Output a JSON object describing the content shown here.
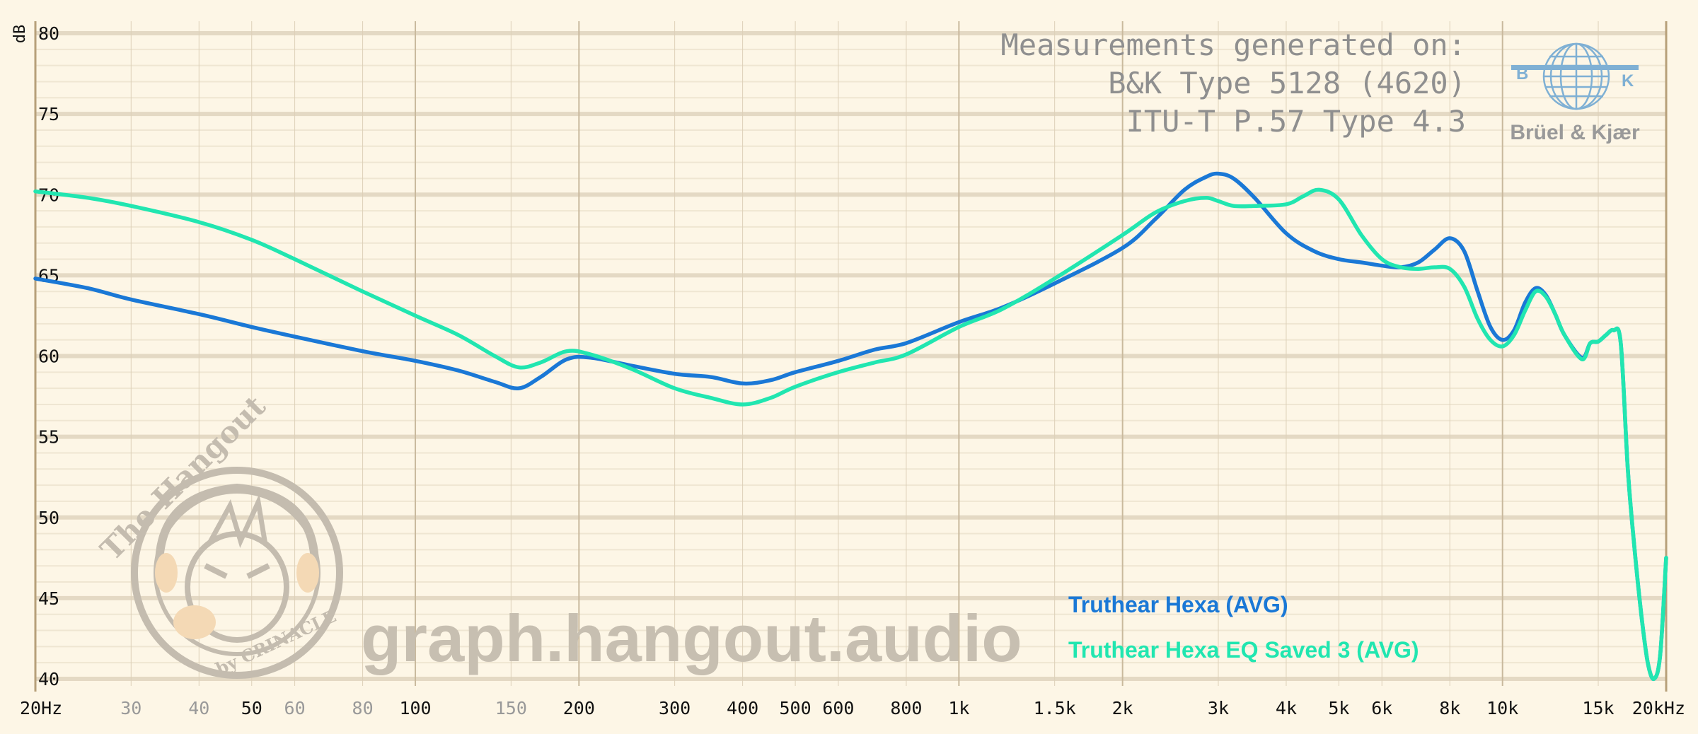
{
  "chart_data": {
    "type": "line",
    "ylabel": "dB",
    "ylim": [
      40,
      80
    ],
    "yticks": [
      40,
      45,
      50,
      55,
      60,
      65,
      70,
      75,
      80
    ],
    "xscale": "log",
    "xlim": [
      20,
      20000
    ],
    "xticks": [
      {
        "v": 20,
        "label": "20Hz",
        "major": true
      },
      {
        "v": 30,
        "label": "30",
        "major": false
      },
      {
        "v": 40,
        "label": "40",
        "major": false
      },
      {
        "v": 50,
        "label": "50",
        "major": true
      },
      {
        "v": 60,
        "label": "60",
        "major": false
      },
      {
        "v": 80,
        "label": "80",
        "major": false
      },
      {
        "v": 100,
        "label": "100",
        "major": true
      },
      {
        "v": 150,
        "label": "150",
        "major": false
      },
      {
        "v": 200,
        "label": "200",
        "major": true
      },
      {
        "v": 300,
        "label": "300",
        "major": true
      },
      {
        "v": 400,
        "label": "400",
        "major": true
      },
      {
        "v": 500,
        "label": "500",
        "major": true
      },
      {
        "v": 600,
        "label": "600",
        "major": true
      },
      {
        "v": 800,
        "label": "800",
        "major": true
      },
      {
        "v": 1000,
        "label": "1k",
        "major": true
      },
      {
        "v": 1500,
        "label": "1.5k",
        "major": true
      },
      {
        "v": 2000,
        "label": "2k",
        "major": true
      },
      {
        "v": 3000,
        "label": "3k",
        "major": true
      },
      {
        "v": 4000,
        "label": "4k",
        "major": true
      },
      {
        "v": 5000,
        "label": "5k",
        "major": true
      },
      {
        "v": 6000,
        "label": "6k",
        "major": true
      },
      {
        "v": 8000,
        "label": "8k",
        "major": true
      },
      {
        "v": 10000,
        "label": "10k",
        "major": true
      },
      {
        "v": 15000,
        "label": "15k",
        "major": true
      },
      {
        "v": 20000,
        "label": "20kHz",
        "major": true
      }
    ],
    "grid": true,
    "legend_position": "bottom-right",
    "series": [
      {
        "name": "Truthear Hexa (AVG)",
        "color": "#1a78d6",
        "x": [
          20,
          25,
          30,
          40,
          50,
          60,
          80,
          100,
          120,
          140,
          155,
          170,
          190,
          210,
          250,
          300,
          350,
          400,
          450,
          500,
          600,
          700,
          800,
          1000,
          1200,
          1500,
          2000,
          2300,
          2600,
          2850,
          3000,
          3200,
          3500,
          4000,
          4500,
          5000,
          5500,
          6000,
          6500,
          7000,
          7500,
          8000,
          8500,
          9000,
          9500,
          10000,
          10500,
          11000,
          11500,
          12000,
          12500,
          13000,
          14000,
          14500,
          15000,
          15500,
          16000,
          16500,
          17000,
          17500,
          18000,
          18500,
          19000,
          19500,
          20000
        ],
        "y": [
          64.8,
          64.2,
          63.5,
          62.6,
          61.8,
          61.2,
          60.3,
          59.7,
          59.1,
          58.4,
          58.0,
          58.7,
          59.8,
          59.9,
          59.4,
          58.9,
          58.7,
          58.3,
          58.5,
          59.0,
          59.7,
          60.4,
          60.8,
          62.1,
          63.0,
          64.5,
          66.7,
          68.5,
          70.3,
          71.1,
          71.3,
          71.0,
          69.8,
          67.6,
          66.5,
          66.0,
          65.8,
          65.6,
          65.5,
          65.8,
          66.6,
          67.3,
          66.5,
          64.0,
          61.8,
          61.0,
          61.6,
          63.3,
          64.2,
          63.8,
          62.6,
          61.3,
          59.9,
          60.8,
          60.9,
          61.3,
          61.6,
          60.8,
          53.0,
          48.0,
          44.0,
          41.0,
          40.0,
          41.5,
          47.5
        ]
      },
      {
        "name": "Truthear Hexa EQ Saved 3 (AVG)",
        "color": "#21e6b0",
        "x": [
          20,
          25,
          30,
          40,
          50,
          60,
          80,
          100,
          120,
          140,
          155,
          170,
          190,
          210,
          250,
          300,
          350,
          400,
          450,
          500,
          600,
          700,
          800,
          1000,
          1200,
          1500,
          2000,
          2300,
          2600,
          2850,
          3000,
          3200,
          3500,
          4000,
          4300,
          4600,
          5000,
          5500,
          6000,
          6500,
          7000,
          7500,
          8000,
          8500,
          9000,
          9500,
          10000,
          10500,
          11000,
          11500,
          12000,
          12500,
          13000,
          14000,
          14500,
          15000,
          15500,
          16000,
          16500,
          17000,
          17500,
          18000,
          18500,
          19000,
          19500,
          20000
        ],
        "y": [
          70.2,
          69.8,
          69.3,
          68.3,
          67.2,
          66.0,
          64.0,
          62.5,
          61.3,
          60.0,
          59.3,
          59.6,
          60.3,
          60.1,
          59.2,
          58.0,
          57.4,
          57.0,
          57.4,
          58.1,
          59.0,
          59.6,
          60.1,
          61.8,
          62.9,
          64.8,
          67.5,
          68.9,
          69.6,
          69.8,
          69.6,
          69.3,
          69.3,
          69.4,
          69.9,
          70.3,
          69.7,
          67.5,
          66.0,
          65.5,
          65.4,
          65.5,
          65.4,
          64.3,
          62.3,
          61.0,
          60.6,
          61.3,
          62.8,
          64.0,
          63.7,
          62.6,
          61.3,
          59.8,
          60.8,
          60.9,
          61.3,
          61.6,
          60.8,
          53.0,
          48.0,
          44.0,
          41.0,
          40.0,
          41.5,
          47.5
        ]
      }
    ]
  },
  "header": {
    "line1": "Measurements generated on:",
    "line2": "B&K Type 5128 (4620)",
    "line3": "ITU-T P.57 Type 4.3"
  },
  "logo": {
    "name": "Brüel & Kjær",
    "letter_b": "B",
    "letter_k": "K",
    "color": "#7fb0d4"
  },
  "watermark": {
    "url": "graph.hangout.audio",
    "title": "The Hangout",
    "byline": "by CRINACLE"
  }
}
